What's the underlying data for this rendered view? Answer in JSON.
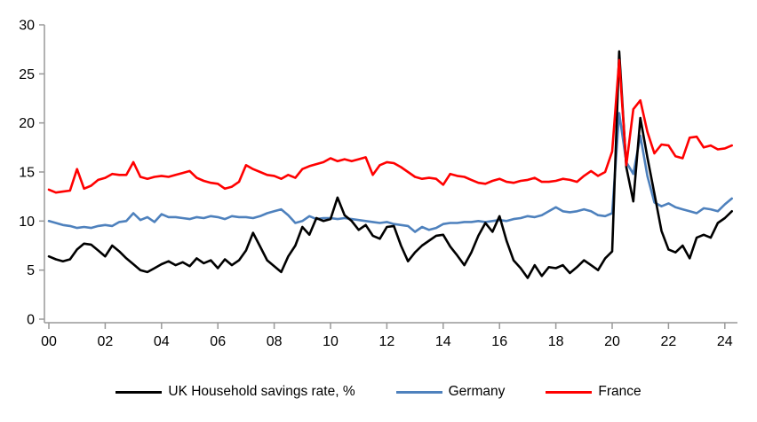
{
  "chart_data": {
    "type": "line",
    "title": "",
    "xlabel": "",
    "ylabel": "",
    "x_start": 2000.0,
    "x_step": 0.25,
    "xlim": [
      2000,
      2024.25
    ],
    "ylim": [
      0,
      30
    ],
    "grid": false,
    "legend_position": "bottom",
    "axis_color": "#999999",
    "tick_label_color": "#000000",
    "yticks": [
      {
        "label": "0",
        "value": 0
      },
      {
        "label": "5",
        "value": 5
      },
      {
        "label": "10",
        "value": 10
      },
      {
        "label": "15",
        "value": 15
      },
      {
        "label": "20",
        "value": 20
      },
      {
        "label": "25",
        "value": 25
      },
      {
        "label": "30",
        "value": 30
      }
    ],
    "xticks": [
      {
        "label": "00",
        "value": 2000
      },
      {
        "label": "02",
        "value": 2002
      },
      {
        "label": "04",
        "value": 2004
      },
      {
        "label": "06",
        "value": 2006
      },
      {
        "label": "08",
        "value": 2008
      },
      {
        "label": "10",
        "value": 2010
      },
      {
        "label": "12",
        "value": 2012
      },
      {
        "label": "14",
        "value": 2014
      },
      {
        "label": "16",
        "value": 2016
      },
      {
        "label": "18",
        "value": 2018
      },
      {
        "label": "20",
        "value": 2020
      },
      {
        "label": "22",
        "value": 2022
      },
      {
        "label": "24",
        "value": 2024
      }
    ],
    "series": [
      {
        "name": "UK Household savings rate, %",
        "color": "#000000",
        "values": [
          6.4,
          6.1,
          5.9,
          6.1,
          7.1,
          7.7,
          7.6,
          7.0,
          6.4,
          7.5,
          6.9,
          6.2,
          5.6,
          5.0,
          4.8,
          5.2,
          5.6,
          5.9,
          5.5,
          5.8,
          5.4,
          6.2,
          5.7,
          6.0,
          5.2,
          6.1,
          5.5,
          6.0,
          7.0,
          8.8,
          7.4,
          6.0,
          5.4,
          4.8,
          6.4,
          7.5,
          9.4,
          8.6,
          10.3,
          10.0,
          10.2,
          12.4,
          10.6,
          10.0,
          9.1,
          9.6,
          8.5,
          8.2,
          9.4,
          9.5,
          7.5,
          5.9,
          6.8,
          7.5,
          8.0,
          8.5,
          8.6,
          7.4,
          6.5,
          5.5,
          6.8,
          8.5,
          9.8,
          8.9,
          10.5,
          8.0,
          6.0,
          5.2,
          4.2,
          5.5,
          4.4,
          5.3,
          5.2,
          5.5,
          4.7,
          5.3,
          6.0,
          5.5,
          5.0,
          6.2,
          6.9,
          27.3,
          15.5,
          12.0,
          20.5,
          16.5,
          12.8,
          9.0,
          7.1,
          6.8,
          7.5,
          6.2,
          8.3,
          8.6,
          8.3,
          9.8,
          10.3,
          11.0
        ]
      },
      {
        "name": "Germany",
        "color": "#4e81bd",
        "values": [
          10.0,
          9.8,
          9.6,
          9.5,
          9.3,
          9.4,
          9.3,
          9.5,
          9.6,
          9.5,
          9.9,
          10.0,
          10.8,
          10.1,
          10.4,
          9.9,
          10.7,
          10.4,
          10.4,
          10.3,
          10.2,
          10.4,
          10.3,
          10.5,
          10.4,
          10.2,
          10.5,
          10.4,
          10.4,
          10.3,
          10.5,
          10.8,
          11.0,
          11.2,
          10.6,
          9.8,
          10.0,
          10.5,
          10.2,
          10.3,
          10.3,
          10.2,
          10.3,
          10.2,
          10.1,
          10.0,
          9.9,
          9.8,
          9.9,
          9.7,
          9.6,
          9.5,
          8.9,
          9.4,
          9.1,
          9.3,
          9.7,
          9.8,
          9.8,
          9.9,
          9.9,
          10.0,
          9.9,
          10.0,
          10.1,
          10.0,
          10.2,
          10.3,
          10.5,
          10.4,
          10.6,
          11.0,
          11.4,
          11.0,
          10.9,
          11.0,
          11.2,
          11.0,
          10.6,
          10.5,
          10.8,
          21.0,
          16.0,
          14.8,
          18.7,
          14.6,
          11.9,
          11.5,
          11.8,
          11.4,
          11.2,
          11.0,
          10.8,
          11.3,
          11.2,
          11.0,
          11.7,
          12.3
        ]
      },
      {
        "name": "France",
        "color": "#ff0000",
        "values": [
          13.2,
          12.9,
          13.0,
          13.1,
          15.3,
          13.3,
          13.6,
          14.2,
          14.4,
          14.8,
          14.7,
          14.7,
          16.0,
          14.5,
          14.3,
          14.5,
          14.6,
          14.5,
          14.7,
          14.9,
          15.1,
          14.4,
          14.1,
          13.9,
          13.8,
          13.3,
          13.5,
          14.0,
          15.7,
          15.3,
          15.0,
          14.7,
          14.6,
          14.3,
          14.7,
          14.4,
          15.3,
          15.6,
          15.8,
          16.0,
          16.4,
          16.1,
          16.3,
          16.1,
          16.3,
          16.5,
          14.7,
          15.7,
          16.0,
          15.9,
          15.5,
          15.0,
          14.5,
          14.3,
          14.4,
          14.3,
          13.7,
          14.8,
          14.6,
          14.5,
          14.2,
          13.9,
          13.8,
          14.1,
          14.3,
          14.0,
          13.9,
          14.1,
          14.2,
          14.4,
          14.0,
          14.0,
          14.1,
          14.3,
          14.2,
          14.0,
          14.6,
          15.1,
          14.6,
          15.0,
          17.1,
          26.4,
          15.7,
          21.4,
          22.3,
          19.1,
          16.9,
          17.8,
          17.7,
          16.6,
          16.4,
          18.5,
          18.6,
          17.5,
          17.7,
          17.3,
          17.4,
          17.7
        ]
      }
    ]
  }
}
